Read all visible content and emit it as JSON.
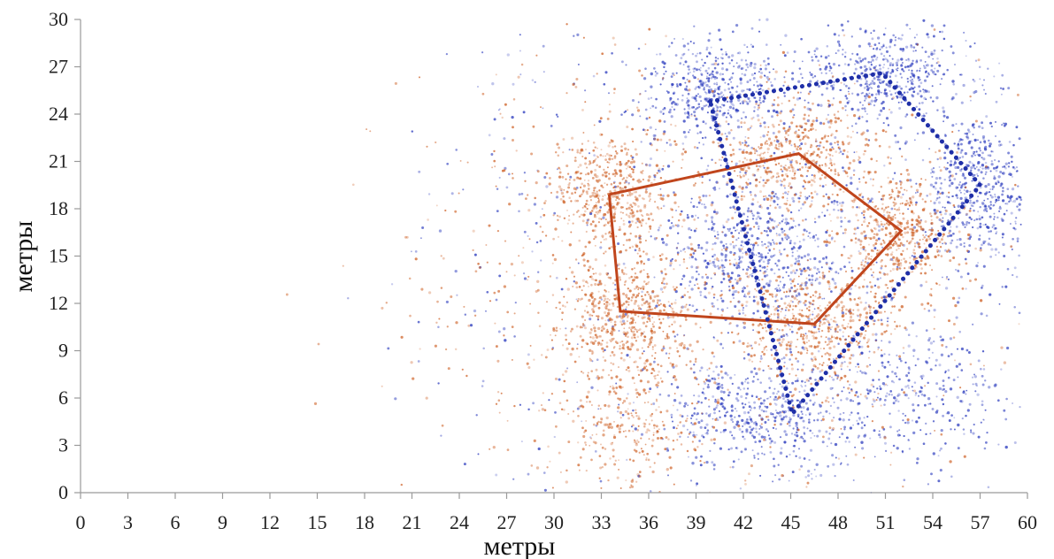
{
  "chart_data": {
    "type": "scatter",
    "xlabel": "метры",
    "ylabel": "метры",
    "xlim": [
      0,
      60
    ],
    "ylim": [
      0,
      30
    ],
    "x_ticks": [
      "0",
      "3",
      "6",
      "9",
      "12",
      "15",
      "18",
      "21",
      "24",
      "27",
      "30",
      "33",
      "36",
      "39",
      "42",
      "45",
      "48",
      "51",
      "54",
      "57",
      "60"
    ],
    "y_ticks": [
      "0",
      "3",
      "6",
      "9",
      "12",
      "15",
      "18",
      "21",
      "24",
      "27",
      "30"
    ],
    "grid": false,
    "legend": "none",
    "series": [
      {
        "kind": "polygon",
        "style": "solid",
        "color": "#c0451c",
        "points": [
          [
            33.5,
            18.9
          ],
          [
            45.5,
            21.5
          ],
          [
            52,
            16.6
          ],
          [
            46.5,
            10.7
          ],
          [
            34.2,
            11.5
          ],
          [
            33.5,
            18.9
          ]
        ]
      },
      {
        "kind": "polygon",
        "style": "dotted",
        "color": "#1f2fa8",
        "points": [
          [
            39.9,
            24.8
          ],
          [
            50.8,
            26.6
          ],
          [
            57,
            19.5
          ],
          [
            45.1,
            5
          ],
          [
            39.9,
            24.8
          ]
        ]
      },
      {
        "kind": "scatter-cloud",
        "color": "#2f3fbf",
        "clusters": [
          {
            "x": 40,
            "y": 25.5,
            "sx": 2.2,
            "sy": 1.6,
            "w": 1.2
          },
          {
            "x": 51,
            "y": 26.5,
            "sx": 2.6,
            "sy": 1.4,
            "w": 1.2
          },
          {
            "x": 57,
            "y": 19.5,
            "sx": 1.8,
            "sy": 2.2,
            "w": 1.2
          },
          {
            "x": 43,
            "y": 15,
            "sx": 2.8,
            "sy": 2.4,
            "w": 1.3
          },
          {
            "x": 43,
            "y": 5,
            "sx": 3.2,
            "sy": 1.6,
            "w": 1.2
          },
          {
            "x": 53,
            "y": 6,
            "sx": 3,
            "sy": 2,
            "w": 0.6
          },
          {
            "x": 46,
            "y": 15,
            "sx": 9,
            "sy": 8,
            "w": 2.2
          },
          {
            "x": 28,
            "y": 15,
            "sx": 4,
            "sy": 9,
            "w": 0.25
          }
        ]
      },
      {
        "kind": "scatter-cloud",
        "color": "#d0672e",
        "clusters": [
          {
            "x": 33.5,
            "y": 19,
            "sx": 1.8,
            "sy": 2,
            "w": 1.2
          },
          {
            "x": 45.5,
            "y": 21.5,
            "sx": 2.2,
            "sy": 1.6,
            "w": 1.1
          },
          {
            "x": 52,
            "y": 16.5,
            "sx": 1.6,
            "sy": 1.8,
            "w": 1
          },
          {
            "x": 46.5,
            "y": 10.5,
            "sx": 2.4,
            "sy": 1.8,
            "w": 1.1
          },
          {
            "x": 34.5,
            "y": 11,
            "sx": 2,
            "sy": 1.8,
            "w": 1.2
          },
          {
            "x": 35,
            "y": 4,
            "sx": 2.4,
            "sy": 2,
            "w": 0.6
          },
          {
            "x": 42,
            "y": 14,
            "sx": 8.5,
            "sy": 7.5,
            "w": 2
          },
          {
            "x": 26,
            "y": 14,
            "sx": 3.5,
            "sy": 8,
            "w": 0.3
          }
        ]
      }
    ]
  }
}
